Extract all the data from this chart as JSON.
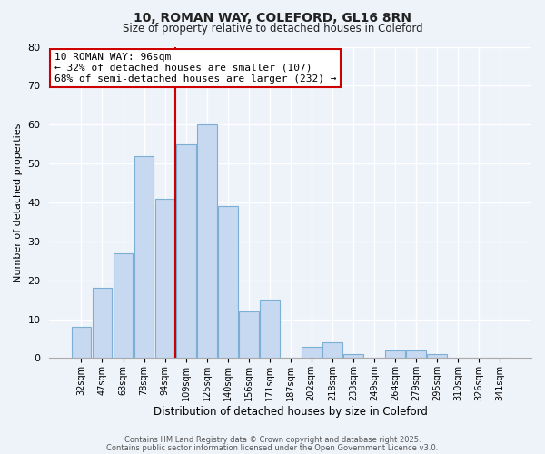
{
  "title1": "10, ROMAN WAY, COLEFORD, GL16 8RN",
  "title2": "Size of property relative to detached houses in Coleford",
  "xlabel": "Distribution of detached houses by size in Coleford",
  "ylabel": "Number of detached properties",
  "footer1": "Contains HM Land Registry data © Crown copyright and database right 2025.",
  "footer2": "Contains public sector information licensed under the Open Government Licence v3.0.",
  "bar_labels": [
    "32sqm",
    "47sqm",
    "63sqm",
    "78sqm",
    "94sqm",
    "109sqm",
    "125sqm",
    "140sqm",
    "156sqm",
    "171sqm",
    "187sqm",
    "202sqm",
    "218sqm",
    "233sqm",
    "249sqm",
    "264sqm",
    "279sqm",
    "295sqm",
    "310sqm",
    "326sqm",
    "341sqm"
  ],
  "bar_values": [
    8,
    18,
    27,
    52,
    41,
    55,
    60,
    39,
    12,
    15,
    0,
    3,
    4,
    1,
    0,
    2,
    2,
    1,
    0,
    0,
    0
  ],
  "bar_color": "#c6d9f0",
  "bar_edge_color": "#7bafd4",
  "vline_color": "#cc0000",
  "annotation_title": "10 ROMAN WAY: 96sqm",
  "annotation_line1": "← 32% of detached houses are smaller (107)",
  "annotation_line2": "68% of semi-detached houses are larger (232) →",
  "annotation_box_facecolor": "#ffffff",
  "annotation_box_edgecolor": "#cc0000",
  "ylim": [
    0,
    80
  ],
  "yticks": [
    0,
    10,
    20,
    30,
    40,
    50,
    60,
    70,
    80
  ],
  "background_color": "#eef2f9",
  "grid_color": "#ffffff"
}
